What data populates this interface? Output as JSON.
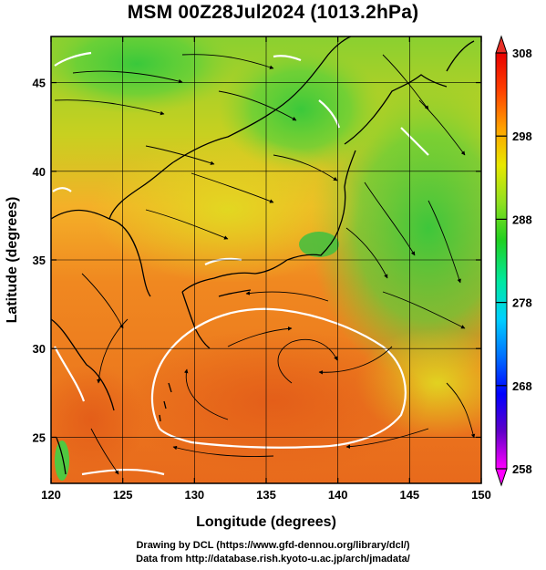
{
  "title": "MSM 00Z28Jul2024 (1013.2hPa)",
  "chart_data": {
    "type": "heatmap",
    "xlabel": "Longitude (degrees)",
    "ylabel": "Latitude  (degrees)",
    "xlim": [
      120,
      150
    ],
    "ylim": [
      22.4,
      47.6
    ],
    "x_ticks": [
      120,
      125,
      130,
      135,
      140,
      145,
      150
    ],
    "y_ticks": [
      25,
      30,
      35,
      40,
      45
    ],
    "grid": true,
    "colorbar": {
      "range": [
        258,
        308
      ],
      "ticks": [
        258,
        268,
        278,
        288,
        298,
        308
      ],
      "colors": [
        "#ff00ff",
        "#6000c8",
        "#0000ff",
        "#0070ff",
        "#00d0ff",
        "#00e8a0",
        "#20d020",
        "#90e020",
        "#e8e800",
        "#ffa000",
        "#ff4000",
        "#e80000"
      ]
    }
  },
  "footer": {
    "credit_drawing": "Drawing by DCL (https://www.gfd-dennou.org/library/dcl/)",
    "credit_data": "Data from http://database.rish.kyoto-u.ac.jp/arch/jmadata/"
  }
}
